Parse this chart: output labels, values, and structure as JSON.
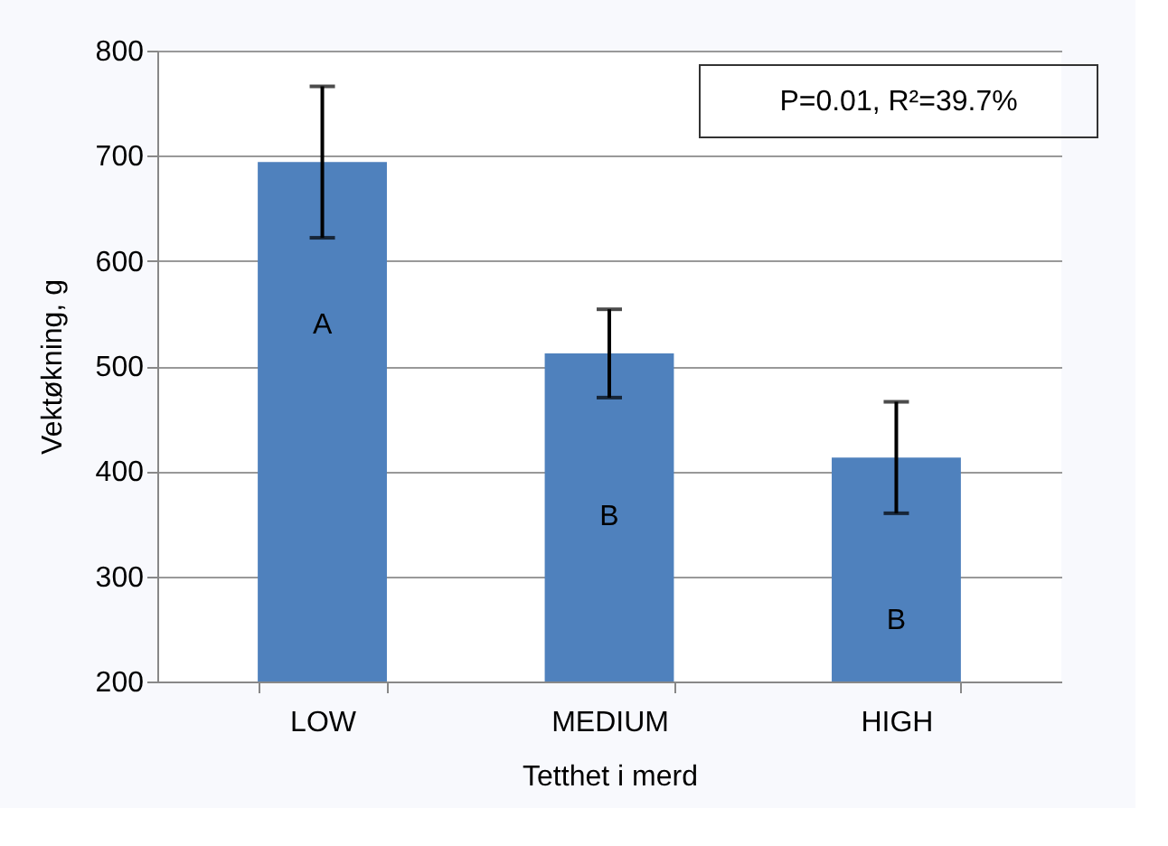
{
  "chart_data": {
    "type": "bar",
    "xlabel": "Tetthet i merd",
    "ylabel": "Vektøkning, g",
    "categories": [
      "LOW",
      "MEDIUM",
      "HIGH"
    ],
    "values": [
      694,
      512,
      413
    ],
    "errors": [
      72,
      42,
      53
    ],
    "color": "#4f81bd",
    "ylim": [
      200,
      800
    ],
    "yticks": [
      200,
      300,
      400,
      500,
      600,
      700,
      800
    ],
    "grid": "y",
    "annotations": [
      "A",
      "B",
      "B",
      "P=0.01, R²=39.7%"
    ]
  }
}
